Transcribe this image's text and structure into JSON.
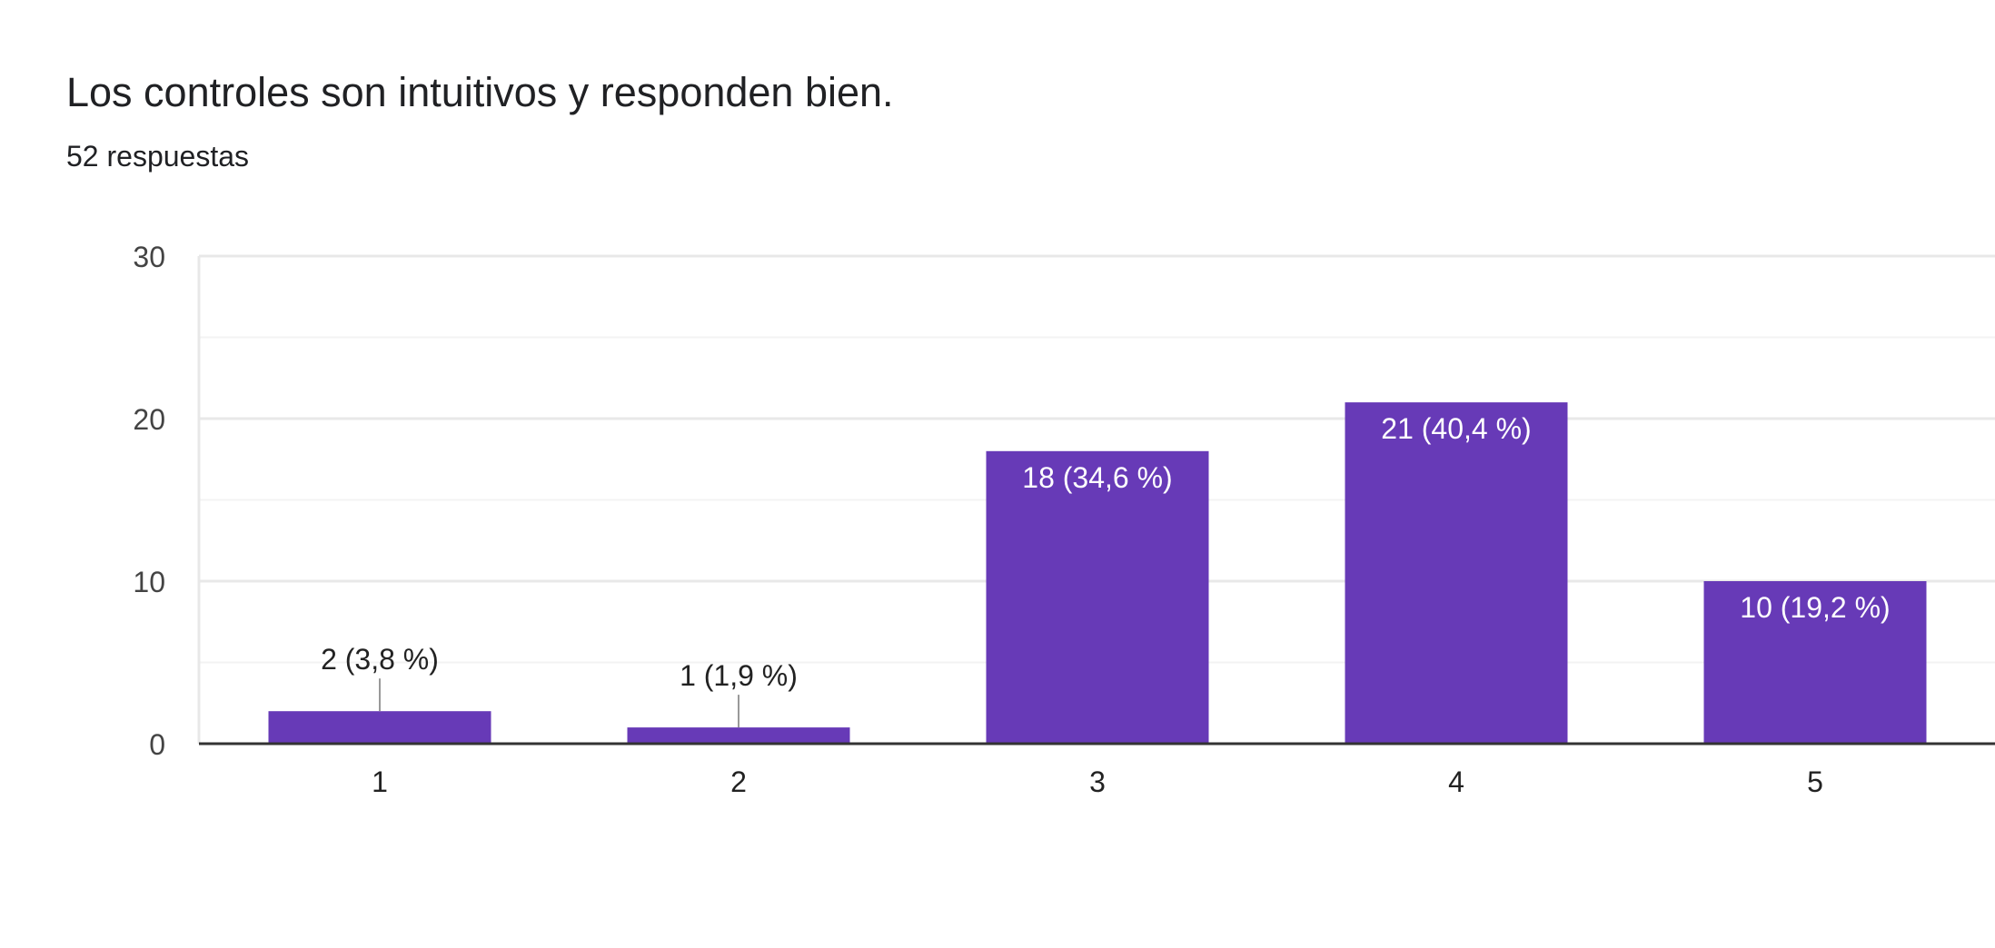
{
  "header": {
    "title": "Los controles son intuitivos y responden bien.",
    "response_count": "52 respuestas"
  },
  "colors": {
    "bar": "#673ab7",
    "grid_major": "#e8e8e8",
    "grid_minor": "#f3f3f3",
    "axis": "#333333",
    "leader": "#999999",
    "label_outside": "#222222",
    "label_inside": "#ffffff",
    "tick_text": "#444444"
  },
  "chart_data": {
    "type": "bar",
    "categories": [
      "1",
      "2",
      "3",
      "4",
      "5"
    ],
    "values": [
      2,
      1,
      18,
      21,
      10
    ],
    "data_labels": [
      "2 (3,8 %)",
      "1 (1,9 %)",
      "18 (34,6 %)",
      "21 (40,4 %)",
      "10 (19,2 %)"
    ],
    "ylim": [
      0,
      30
    ],
    "yticks": [
      0,
      10,
      20,
      30
    ],
    "ytick_labels": [
      "0",
      "10",
      "20",
      "30"
    ],
    "grid": true,
    "legend": "none",
    "xlabel": "",
    "ylabel": ""
  }
}
